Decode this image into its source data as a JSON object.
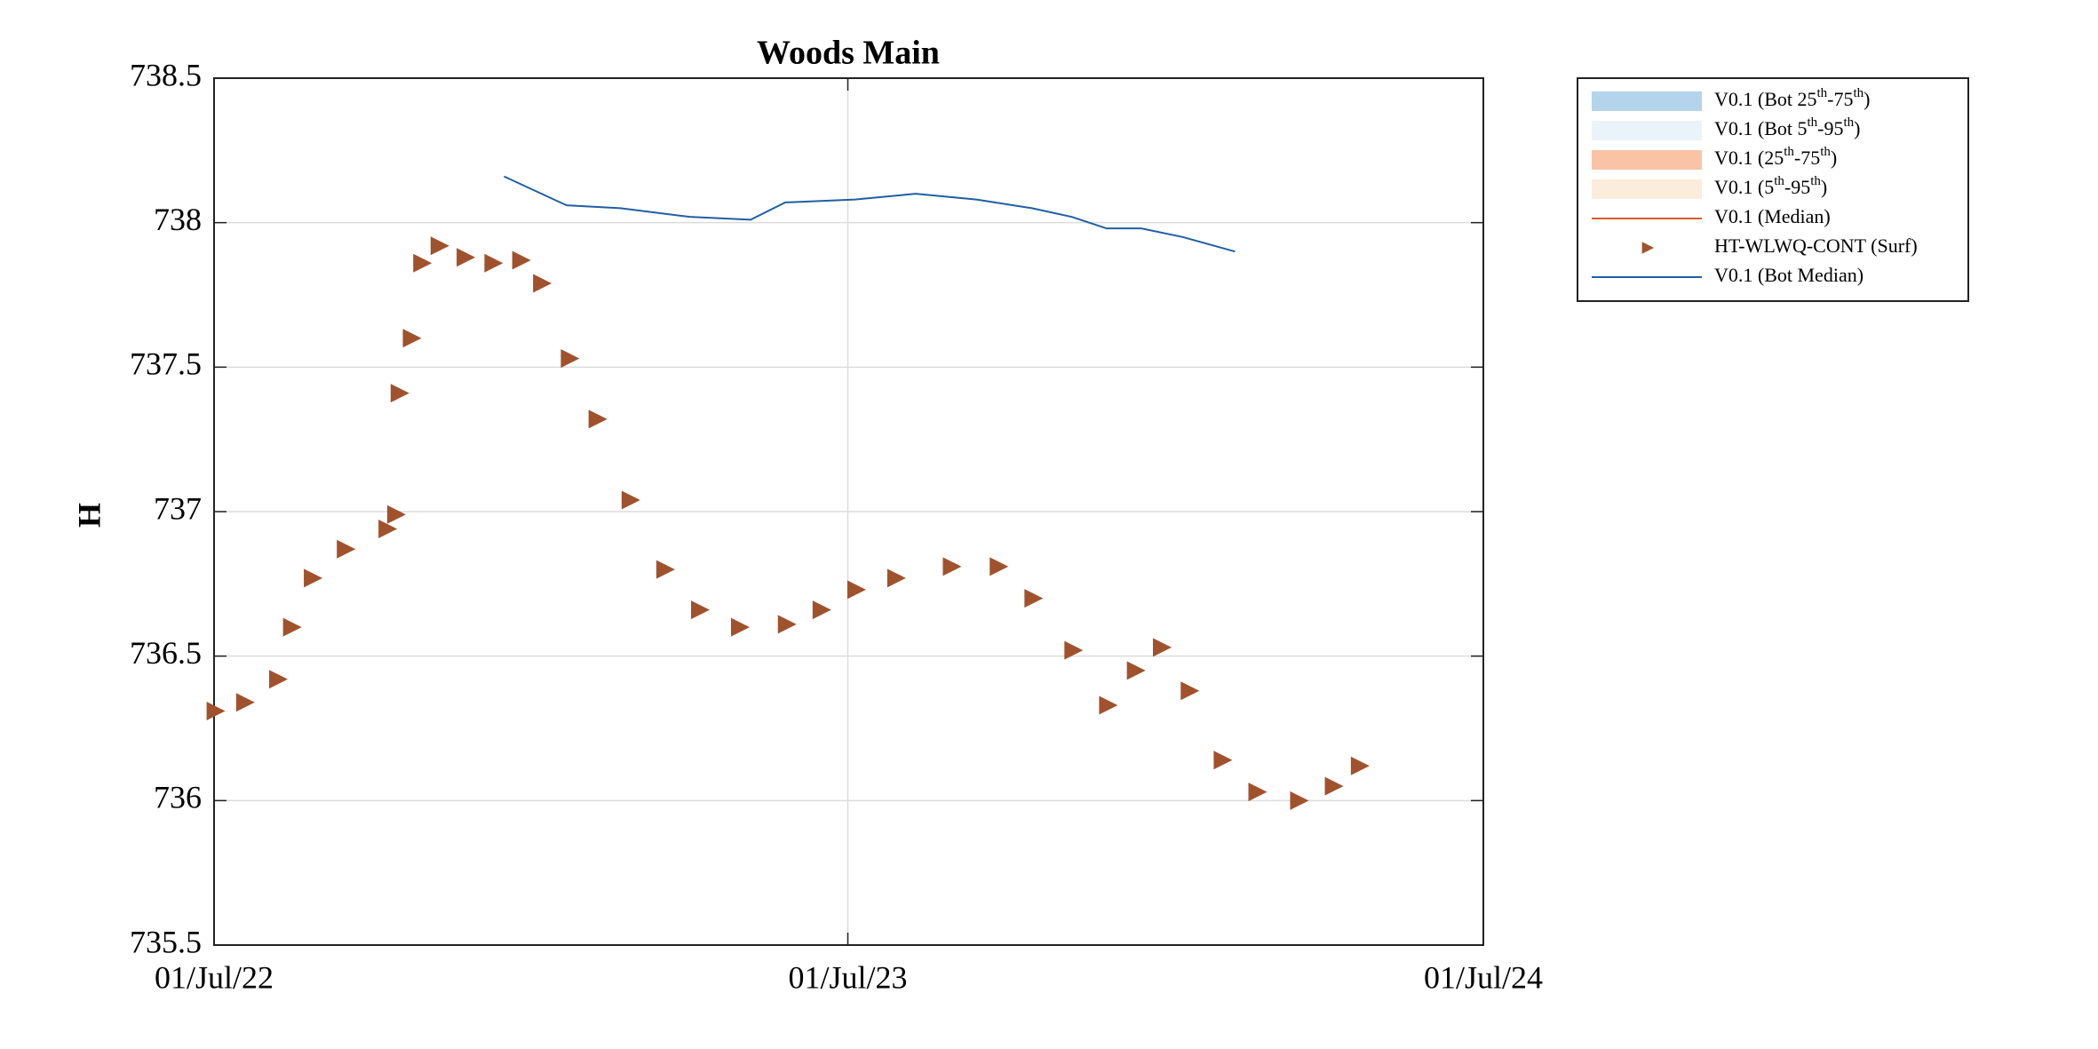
{
  "chart_data": {
    "type": "scatter",
    "title": "Woods Main",
    "y_label": "H",
    "xlim": [
      "01/Jul/22",
      "01/Jul/24"
    ],
    "xticks": [
      "01/Jul/22",
      "01/Jul/23",
      "01/Jul/24"
    ],
    "ylim": [
      735.5,
      738.5
    ],
    "yticks": [
      735.5,
      736,
      736.5,
      737,
      737.5,
      738,
      738.5
    ],
    "grid": true,
    "legend_position": "outside-right",
    "series": [
      {
        "name": "V0.1 (Bot 25th-75th)",
        "color": "#b3d4ea",
        "style": "band"
      },
      {
        "name": "V0.1 (Bot 5th-95th)",
        "color": "#eaf2fa",
        "style": "band"
      },
      {
        "name": "V0.1 (25th-75th)",
        "color": "#fbc3a6",
        "style": "band"
      },
      {
        "name": "V0.1 (5th-95th)",
        "color": "#fcecdc",
        "style": "band"
      },
      {
        "name": "V0.1 (Median)",
        "color": "#d45e2a",
        "style": "line"
      },
      {
        "name": "HT-WLWQ-CONT (Surf)",
        "color": "#a0522d",
        "style": "marker",
        "x": [
          "01/Jul/22",
          "18/Jul/22",
          "06/Aug/22",
          "14/Aug/22",
          "26/Aug/22",
          "14/Sep/22",
          "08/Oct/22",
          "13/Oct/22",
          "15/Oct/22",
          "22/Oct/22",
          "28/Oct/22",
          "07/Nov/22",
          "22/Nov/22",
          "08/Dec/22",
          "24/Dec/22",
          "05/Jan/23",
          "21/Jan/23",
          "06/Feb/23",
          "25/Feb/23",
          "17/Mar/23",
          "06/Apr/23",
          "29/Apr/23",
          "26/May/23",
          "15/Jun/23",
          "05/Jul/23",
          "28/Jul/23",
          "29/Aug/23",
          "25/Sep/23",
          "15/Oct/23",
          "07/Nov/23",
          "27/Nov/23",
          "13/Dec/23",
          "28/Dec/23",
          "13/Jan/24",
          "01/Feb/24",
          "21/Feb/24",
          "16/Mar/24",
          "05/Apr/24",
          "20/Apr/24"
        ],
        "values": [
          736.31,
          736.34,
          736.42,
          736.6,
          736.77,
          736.87,
          736.94,
          736.99,
          737.41,
          737.6,
          737.86,
          737.92,
          737.88,
          737.86,
          737.87,
          737.79,
          737.53,
          737.32,
          737.04,
          736.8,
          736.66,
          736.6,
          736.61,
          736.66,
          736.73,
          736.77,
          736.81,
          736.81,
          736.7,
          736.52,
          736.33,
          736.45,
          736.53,
          736.38,
          736.14,
          736.03,
          736.0,
          736.05,
          736.12
        ]
      },
      {
        "name": "V0.1 (Bot Median)",
        "color": "#1f5fa3",
        "style": "line",
        "x": [
          "15/Dec/22",
          "20/Jan/23",
          "20/Feb/23",
          "01/Apr/23",
          "06/May/23",
          "26/May/23",
          "05/Jul/23",
          "09/Aug/23",
          "13/Sep/23",
          "15/Oct/23",
          "07/Nov/23",
          "27/Nov/23",
          "17/Dec/23",
          "10/Jan/24",
          "09/Feb/24"
        ],
        "values": [
          738.16,
          738.06,
          738.05,
          738.02,
          738.01,
          738.07,
          738.08,
          738.1,
          738.08,
          738.05,
          738.02,
          737.98,
          737.98,
          737.95,
          737.9
        ]
      }
    ]
  }
}
